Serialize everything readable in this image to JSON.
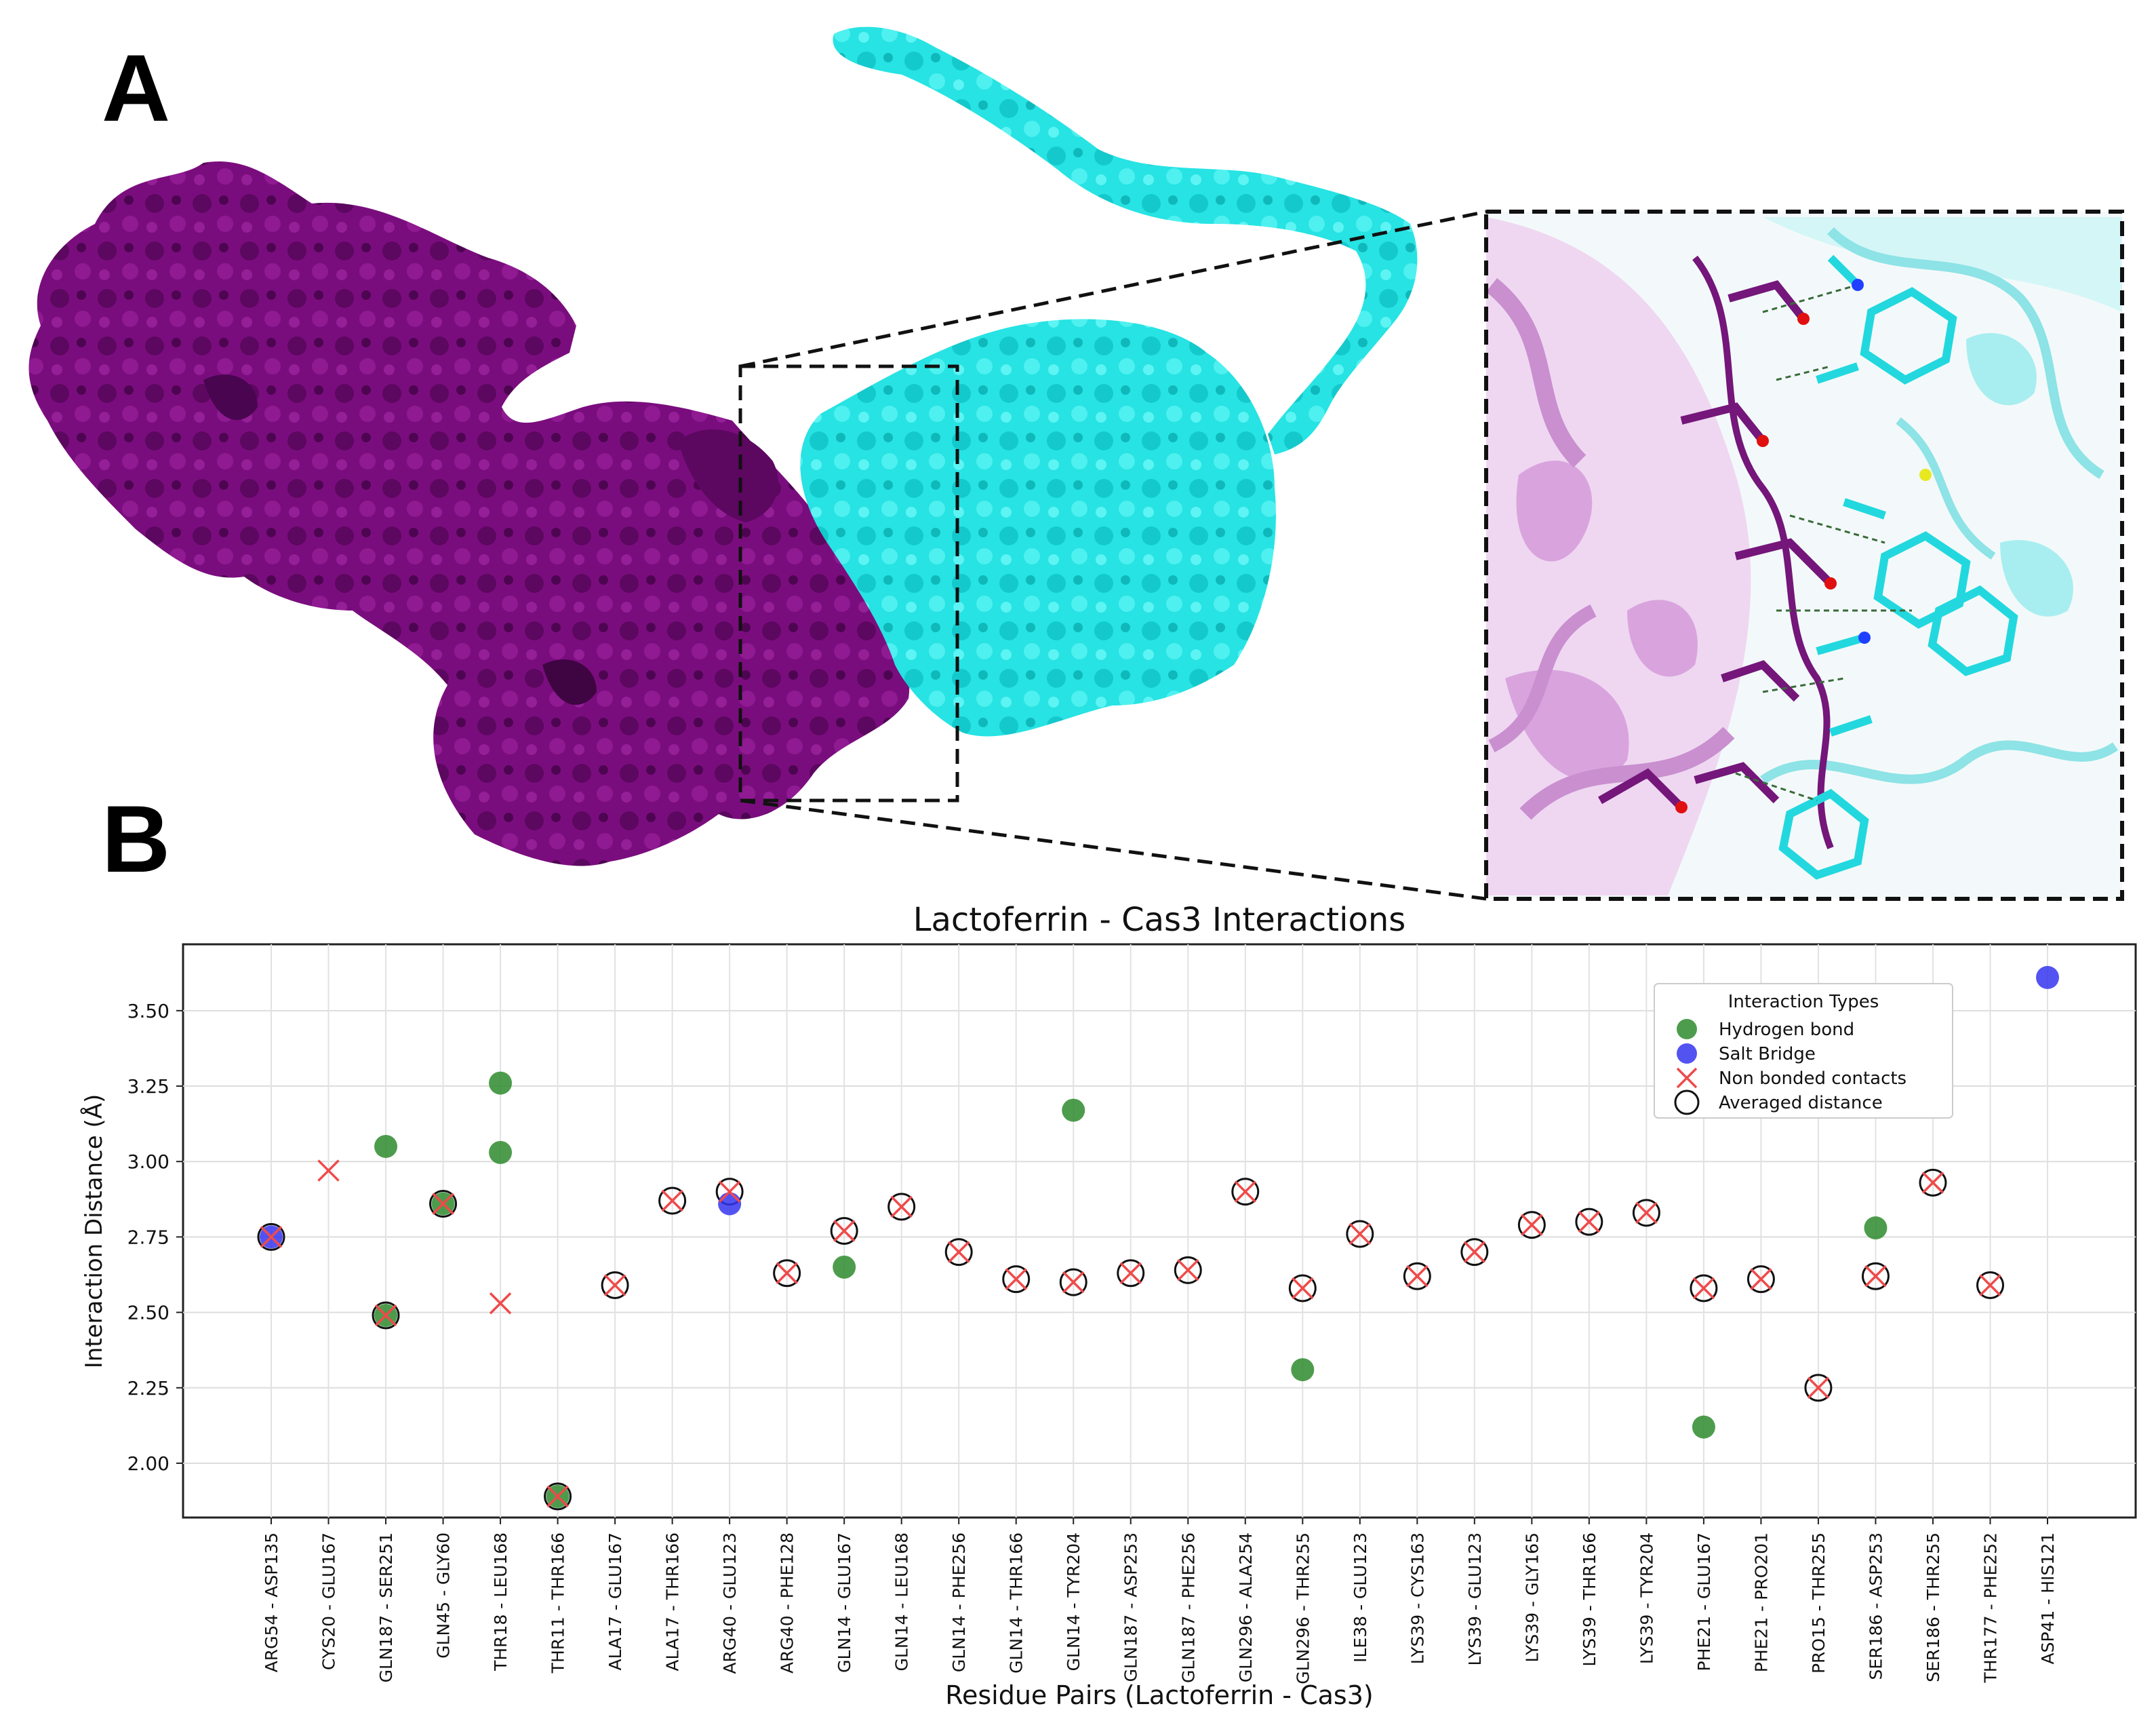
{
  "panels": {
    "a_label": "A",
    "b_label": "B"
  },
  "colors": {
    "magenta_protein": "#7a0d7d",
    "magenta_light": "#d9a4de",
    "cyan_protein": "#27e3e3",
    "cyan_light": "#a8eef0",
    "hbond": "#2e8b2e",
    "salt_bridge": "#3535f0",
    "nonbonded": "#ef4a4a",
    "averaged_outline": "#111111"
  },
  "chart_data": {
    "type": "scatter",
    "title": "Lactoferrin - Cas3 Interactions",
    "xlabel": "Residue Pairs (Lactoferrin - Cas3)",
    "ylabel": "Interaction Distance (Å)",
    "ylim": [
      1.82,
      3.72
    ],
    "yticks": [
      "2.00",
      "2.25",
      "2.50",
      "2.75",
      "3.00",
      "3.25",
      "3.50"
    ],
    "grid": true,
    "legend": {
      "title": "Interaction Types",
      "placement": "top-right",
      "entries": [
        "Hydrogen bond",
        "Salt Bridge",
        "Non bonded contacts",
        "Averaged distance"
      ]
    },
    "categories": [
      "ARG54 - ASP135",
      "CYS20 - GLU167",
      "GLN187 - SER251",
      "GLN45 - GLY60",
      "THR18 - LEU168",
      "THR11 - THR166",
      "ALA17 - GLU167",
      "ALA17 - THR166",
      "ARG40 - GLU123",
      "ARG40 - PHE128",
      "GLN14 - GLU167",
      "GLN14 - LEU168",
      "GLN14 - PHE256",
      "GLN14 - THR166",
      "GLN14 - TYR204",
      "GLN187 - ASP253",
      "GLN187 - PHE256",
      "GLN296 - ALA254",
      "GLN296 - THR255",
      "ILE38 - GLU123",
      "LYS39 - CYS163",
      "LYS39 - GLU123",
      "LYS39 - GLY165",
      "LYS39 - THR166",
      "LYS39 - TYR204",
      "PHE21 - GLU167",
      "PHE21 - PRO201",
      "PRO15 - THR255",
      "SER186 - ASP253",
      "SER186 - THR255",
      "THR177 - PHE252",
      "ASP41 - HIS121"
    ],
    "series": [
      {
        "name": "Hydrogen bond",
        "marker": "circle-filled",
        "points": [
          [
            2,
            3.05
          ],
          [
            2,
            2.49
          ],
          [
            3,
            2.86
          ],
          [
            4,
            3.26
          ],
          [
            4,
            3.03
          ],
          [
            5,
            1.89
          ],
          [
            10,
            2.65
          ],
          [
            14,
            3.17
          ],
          [
            18,
            2.31
          ],
          [
            25,
            2.12
          ],
          [
            28,
            2.78
          ]
        ]
      },
      {
        "name": "Salt Bridge",
        "marker": "circle-filled",
        "points": [
          [
            0,
            2.75
          ],
          [
            8,
            2.86
          ],
          [
            31,
            3.61
          ]
        ]
      },
      {
        "name": "Non bonded contacts",
        "marker": "x",
        "points": [
          [
            0,
            2.75
          ],
          [
            1,
            2.97
          ],
          [
            2,
            2.49
          ],
          [
            3,
            2.86
          ],
          [
            4,
            2.53
          ],
          [
            5,
            1.89
          ],
          [
            6,
            2.59
          ],
          [
            7,
            2.87
          ],
          [
            8,
            2.9
          ],
          [
            9,
            2.63
          ],
          [
            10,
            2.77
          ],
          [
            11,
            2.85
          ],
          [
            12,
            2.7
          ],
          [
            13,
            2.61
          ],
          [
            14,
            2.6
          ],
          [
            15,
            2.63
          ],
          [
            16,
            2.64
          ],
          [
            17,
            2.9
          ],
          [
            18,
            2.58
          ],
          [
            19,
            2.76
          ],
          [
            20,
            2.62
          ],
          [
            21,
            2.7
          ],
          [
            22,
            2.79
          ],
          [
            23,
            2.8
          ],
          [
            24,
            2.83
          ],
          [
            25,
            2.58
          ],
          [
            26,
            2.61
          ],
          [
            27,
            2.25
          ],
          [
            28,
            2.62
          ],
          [
            29,
            2.93
          ],
          [
            30,
            2.59
          ]
        ]
      },
      {
        "name": "Averaged distance",
        "marker": "circle-open",
        "points": [
          [
            0,
            2.75
          ],
          [
            2,
            2.49
          ],
          [
            3,
            2.86
          ],
          [
            5,
            1.89
          ],
          [
            6,
            2.59
          ],
          [
            7,
            2.87
          ],
          [
            8,
            2.9
          ],
          [
            9,
            2.63
          ],
          [
            10,
            2.77
          ],
          [
            11,
            2.85
          ],
          [
            12,
            2.7
          ],
          [
            13,
            2.61
          ],
          [
            14,
            2.6
          ],
          [
            15,
            2.63
          ],
          [
            16,
            2.64
          ],
          [
            17,
            2.9
          ],
          [
            18,
            2.58
          ],
          [
            19,
            2.76
          ],
          [
            20,
            2.62
          ],
          [
            21,
            2.7
          ],
          [
            22,
            2.79
          ],
          [
            23,
            2.8
          ],
          [
            24,
            2.83
          ],
          [
            25,
            2.58
          ],
          [
            26,
            2.61
          ],
          [
            27,
            2.25
          ],
          [
            28,
            2.62
          ],
          [
            29,
            2.93
          ],
          [
            30,
            2.59
          ]
        ]
      }
    ]
  }
}
